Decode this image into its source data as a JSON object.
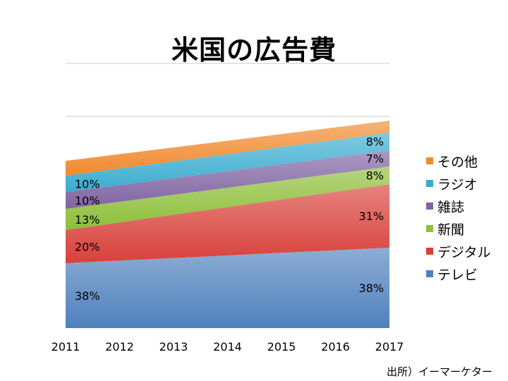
{
  "chart_data": {
    "type": "area",
    "stacked": true,
    "title": "米国の広告費",
    "x": [
      "2011",
      "2012",
      "2013",
      "2014",
      "2015",
      "2016",
      "2017"
    ],
    "series": [
      {
        "name": "テレビ",
        "color": "#4F81BD",
        "values": [
          38,
          null,
          null,
          null,
          null,
          null,
          38
        ]
      },
      {
        "name": "デジタル",
        "color": "#D9403A",
        "values": [
          20,
          null,
          null,
          null,
          null,
          null,
          31
        ]
      },
      {
        "name": "新聞",
        "color": "#8DBF3A",
        "values": [
          13,
          null,
          null,
          null,
          null,
          null,
          8
        ]
      },
      {
        "name": "雑誌",
        "color": "#8064A2",
        "values": [
          10,
          null,
          null,
          null,
          null,
          null,
          7
        ]
      },
      {
        "name": "ラジオ",
        "color": "#3AADCF",
        "values": [
          10,
          null,
          null,
          null,
          null,
          null,
          8
        ]
      },
      {
        "name": "その他",
        "color": "#F08A2E",
        "values": [
          null,
          null,
          null,
          null,
          null,
          null,
          null
        ]
      }
    ],
    "data_labels": {
      "2011": [
        "38%",
        "20%",
        "13%",
        "10%",
        "10%"
      ],
      "2017": [
        "38%",
        "31%",
        "8%",
        "7%",
        "8%"
      ]
    },
    "legend_position": "right",
    "grid": true
  },
  "source": "出所）イーマーケター"
}
